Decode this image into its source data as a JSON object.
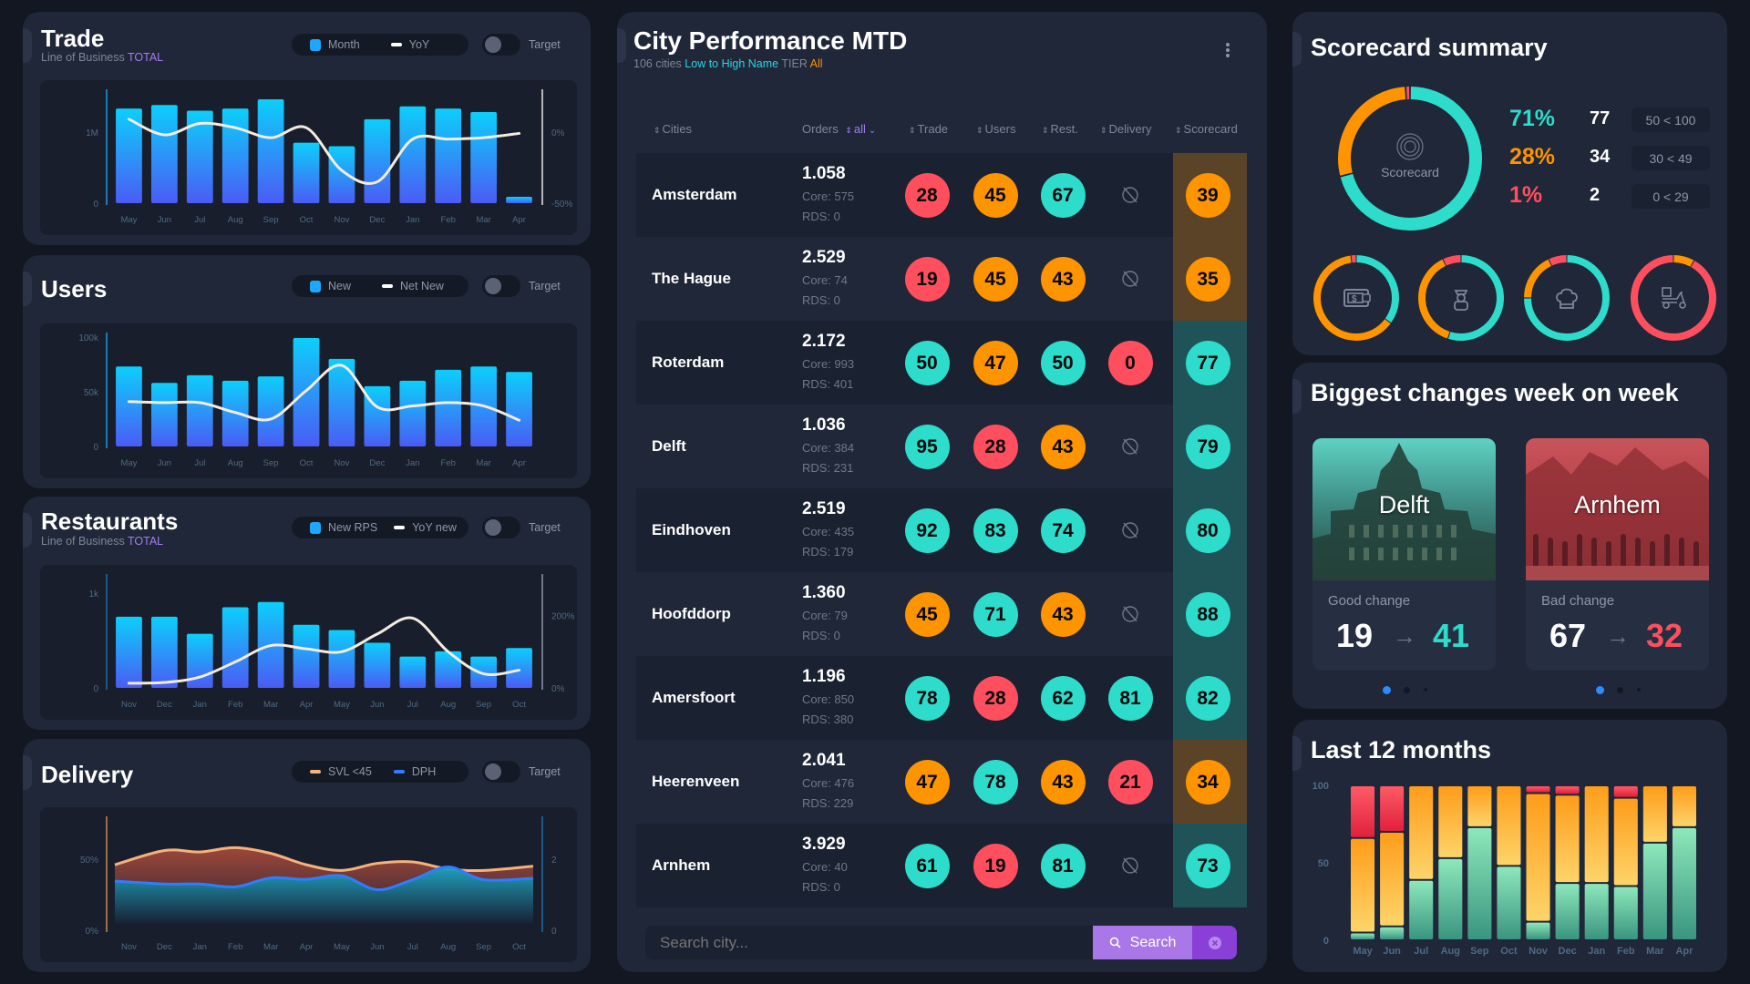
{
  "colors": {
    "good": "#2edccb",
    "mid": "#fd9400",
    "bad": "#ff4f5e",
    "bar_top": "#0ccffb",
    "bar_bottom": "#4a5cf5",
    "accent_purple": "#a57bf0",
    "accent_cyan": "#2bd3e8"
  },
  "trade": {
    "title": "Trade",
    "subtitle": "Line of Business",
    "subtitle_value": "TOTAL",
    "legend": [
      "Month",
      "YoY"
    ],
    "target_label": "Target",
    "target_on": false
  },
  "users": {
    "title": "Users",
    "legend": [
      "New",
      "Net New"
    ],
    "target_label": "Target",
    "target_on": false
  },
  "restaurants": {
    "title": "Restaurants",
    "subtitle": "Line of Business",
    "subtitle_value": "TOTAL",
    "legend": [
      "New RPS",
      "YoY new"
    ],
    "target_label": "Target",
    "target_on": false
  },
  "delivery": {
    "title": "Delivery",
    "legend": [
      "SVL <45",
      "DPH"
    ],
    "target_label": "Target",
    "target_on": false
  },
  "chart_data": [
    {
      "id": "trade",
      "type": "bar",
      "categories": [
        "May",
        "Jun",
        "Jul",
        "Aug",
        "Sep",
        "Oct",
        "Nov",
        "Dec",
        "Jan",
        "Feb",
        "Mar",
        "Apr"
      ],
      "series": [
        {
          "name": "Month",
          "type": "bar",
          "axis": "left",
          "values": [
            1330000,
            1380000,
            1300000,
            1330000,
            1460000,
            850000,
            800000,
            1180000,
            1360000,
            1330000,
            1280000,
            90000
          ]
        },
        {
          "name": "YoY",
          "type": "line",
          "axis": "right",
          "values": [
            9,
            -2,
            6,
            3,
            -4,
            3,
            -27,
            -35,
            -5,
            -5,
            -4,
            -1
          ]
        }
      ],
      "ylim": [
        0,
        1600000
      ],
      "yticks": [
        {
          "v": 0,
          "label": "0"
        },
        {
          "v": 1000000,
          "label": "1M"
        }
      ],
      "y2lim": [
        -50,
        30
      ],
      "y2ticks": [
        {
          "v": -50,
          "label": "-50%"
        },
        {
          "v": 0,
          "label": "0%"
        }
      ]
    },
    {
      "id": "users",
      "type": "bar",
      "categories": [
        "May",
        "Jun",
        "Jul",
        "Aug",
        "Sep",
        "Oct",
        "Nov",
        "Dec",
        "Jan",
        "Feb",
        "Mar",
        "Apr"
      ],
      "series": [
        {
          "name": "New",
          "type": "bar",
          "axis": "left",
          "values": [
            73000,
            58000,
            65000,
            60000,
            64000,
            99000,
            80000,
            55000,
            60000,
            70000,
            73000,
            68000
          ]
        },
        {
          "name": "Net New",
          "type": "line",
          "axis": "left",
          "values": [
            41000,
            40000,
            40000,
            31000,
            25000,
            51000,
            74000,
            36000,
            37000,
            40000,
            37000,
            24000
          ]
        }
      ],
      "ylim": [
        0,
        104000
      ],
      "yticks": [
        {
          "v": 0,
          "label": "0"
        },
        {
          "v": 50000,
          "label": "50k"
        },
        {
          "v": 100000,
          "label": "100k"
        }
      ]
    },
    {
      "id": "restaurants",
      "type": "bar",
      "categories": [
        "Nov",
        "Dec",
        "Jan",
        "Feb",
        "Mar",
        "Apr",
        "May",
        "Jun",
        "Jul",
        "Aug",
        "Sep",
        "Oct"
      ],
      "series": [
        {
          "name": "New RPS",
          "type": "bar",
          "axis": "left",
          "values": [
            750,
            750,
            570,
            850,
            905,
            665,
            610,
            475,
            330,
            385,
            330,
            420
          ]
        },
        {
          "name": "YoY new",
          "type": "line",
          "axis": "right",
          "values": [
            13,
            15,
            30,
            72,
            117,
            108,
            100,
            149,
            193,
            100,
            39,
            49
          ]
        }
      ],
      "ylim": [
        0,
        1200
      ],
      "yticks": [
        {
          "v": 0,
          "label": "0"
        },
        {
          "v": 1000,
          "label": "1k"
        }
      ],
      "y2lim": [
        0,
        315
      ],
      "y2ticks": [
        {
          "v": 0,
          "label": "0%"
        },
        {
          "v": 200,
          "label": "200%"
        }
      ]
    },
    {
      "id": "delivery",
      "type": "area",
      "categories": [
        "Nov",
        "Dec",
        "Jan",
        "Feb",
        "Mar",
        "Apr",
        "May",
        "Jun",
        "Jul",
        "Aug",
        "Sep",
        "Oct"
      ],
      "series": [
        {
          "name": "SVL <45",
          "type": "area",
          "axis": "left",
          "values": [
            46,
            56,
            55,
            58,
            54,
            46,
            42,
            47,
            48,
            43,
            42,
            45
          ]
        },
        {
          "name": "DPH",
          "type": "area",
          "axis": "right",
          "values": [
            1.38,
            1.3,
            1.3,
            1.22,
            1.47,
            1.43,
            1.53,
            1.14,
            1.42,
            1.78,
            1.42,
            1.46
          ]
        }
      ],
      "ylim": [
        0,
        80
      ],
      "yticks": [
        {
          "v": 0,
          "label": "0%"
        },
        {
          "v": 50,
          "label": "50%"
        }
      ],
      "y2lim": [
        0,
        3.2
      ],
      "y2ticks": [
        {
          "v": 0,
          "label": "0"
        },
        {
          "v": 2,
          "label": "2"
        }
      ]
    },
    {
      "id": "last12",
      "type": "bar",
      "stacked": true,
      "categories": [
        "May",
        "Jun",
        "Jul",
        "Aug",
        "Sep",
        "Oct",
        "Nov",
        "Dec",
        "Jan",
        "Feb",
        "Mar",
        "Apr"
      ],
      "series": [
        {
          "status": "good",
          "values": [
            5,
            9,
            39,
            53,
            73,
            48,
            12,
            37,
            37,
            35,
            63,
            73
          ]
        },
        {
          "status": "mid",
          "values": [
            61,
            61,
            61,
            47,
            27,
            52,
            83,
            57,
            63,
            57,
            37,
            27
          ]
        },
        {
          "status": "bad",
          "values": [
            34,
            30,
            0,
            0,
            0,
            0,
            5,
            6,
            0,
            8,
            0,
            0
          ]
        }
      ],
      "ylim": [
        0,
        100
      ],
      "yticks": [
        {
          "v": 0,
          "label": "0"
        },
        {
          "v": 50,
          "label": "50"
        },
        {
          "v": 100,
          "label": "100"
        }
      ]
    }
  ],
  "city": {
    "title": "City Performance MTD",
    "count": "106 cities",
    "sort": "Low to High Name",
    "tier_label": "TIER",
    "tier_value": "All",
    "headers": {
      "cities": "Cities",
      "orders": "Orders",
      "orders_filter": "all",
      "trade": "Trade",
      "users": "Users",
      "rest": "Rest.",
      "delivery": "Delivery",
      "scorecard": "Scorecard"
    },
    "rows": [
      {
        "city": "Amsterdam",
        "orders": "1.058",
        "core": "Core: 575",
        "rds": "RDS: 0",
        "trade": 28,
        "users": 45,
        "rest": 67,
        "delivery": null,
        "score": 39
      },
      {
        "city": "The Hague",
        "orders": "2.529",
        "core": "Core: 74",
        "rds": "RDS: 0",
        "trade": 19,
        "users": 45,
        "rest": 43,
        "delivery": null,
        "score": 35
      },
      {
        "city": "Roterdam",
        "orders": "2.172",
        "core": "Core: 993",
        "rds": "RDS: 401",
        "trade": 50,
        "users": 47,
        "rest": 50,
        "delivery": 0,
        "score": 77
      },
      {
        "city": "Delft",
        "orders": "1.036",
        "core": "Core: 384",
        "rds": "RDS: 231",
        "trade": 95,
        "users": 28,
        "rest": 43,
        "delivery": null,
        "score": 79
      },
      {
        "city": "Eindhoven",
        "orders": "2.519",
        "core": "Core: 435",
        "rds": "RDS: 179",
        "trade": 92,
        "users": 83,
        "rest": 74,
        "delivery": null,
        "score": 80
      },
      {
        "city": "Hoofddorp",
        "orders": "1.360",
        "core": "Core: 79",
        "rds": "RDS: 0",
        "trade": 45,
        "users": 71,
        "rest": 43,
        "delivery": null,
        "score": 88
      },
      {
        "city": "Amersfoort",
        "orders": "1.196",
        "core": "Core: 850",
        "rds": "RDS: 380",
        "trade": 78,
        "users": 28,
        "rest": 62,
        "delivery": 81,
        "score": 82
      },
      {
        "city": "Heerenveen",
        "orders": "2.041",
        "core": "Core: 476",
        "rds": "RDS: 229",
        "trade": 47,
        "users": 78,
        "rest": 43,
        "delivery": 21,
        "score": 34
      },
      {
        "city": "Arnhem",
        "orders": "3.929",
        "core": "Core: 40",
        "rds": "RDS: 0",
        "trade": 61,
        "users": 19,
        "rest": 81,
        "delivery": null,
        "score": 73
      }
    ],
    "search": {
      "placeholder": "Search city...",
      "value": "",
      "button": "Search"
    }
  },
  "scorecard": {
    "title": "Scorecard summary",
    "center_label": "Scorecard",
    "rows": [
      {
        "pct": "71%",
        "count": "77",
        "range": "50 < 100",
        "status": "good"
      },
      {
        "pct": "28%",
        "count": "34",
        "range": "30 < 49",
        "status": "mid"
      },
      {
        "pct": "1%",
        "count": "2",
        "range": "0 < 29",
        "status": "bad"
      }
    ],
    "main_donut": {
      "good": 71,
      "mid": 28,
      "bad": 1
    },
    "small_donuts": [
      {
        "icon": "wallet-icon",
        "good": 35,
        "mid": 63,
        "bad": 2
      },
      {
        "icon": "user-icon",
        "good": 55,
        "mid": 38,
        "bad": 7
      },
      {
        "icon": "chef-hat-icon",
        "good": 75,
        "mid": 18,
        "bad": 7
      },
      {
        "icon": "delivery-scooter-icon",
        "good": 0,
        "mid": 8,
        "bad": 92
      }
    ]
  },
  "changes": {
    "title": "Biggest changes week on week",
    "cards": [
      {
        "city": "Delft",
        "label": "Good change",
        "from": "19",
        "to": "41",
        "status": "good"
      },
      {
        "city": "Arnhem",
        "label": "Bad change",
        "from": "67",
        "to": "32",
        "status": "bad"
      }
    ]
  },
  "last12": {
    "title": "Last 12 months"
  }
}
